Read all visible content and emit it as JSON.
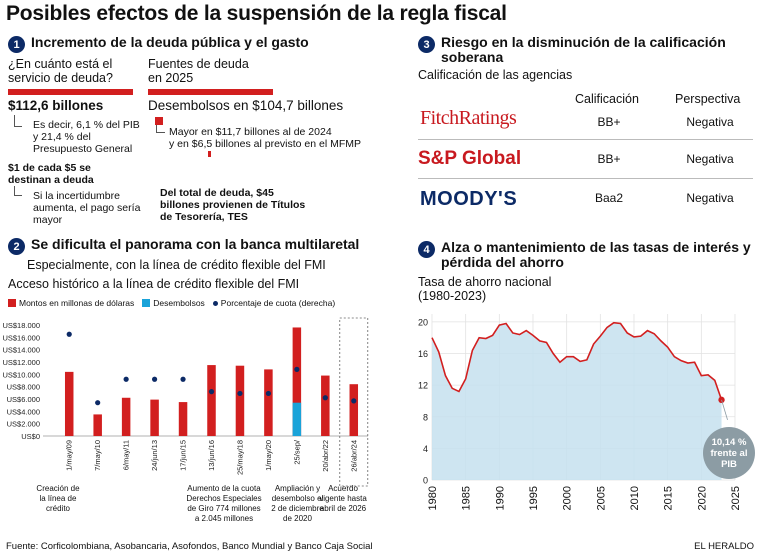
{
  "title": "Posibles efectos de la suspensión de la regla fiscal",
  "s1": {
    "num": "1",
    "title": "Incremento de la deuda pública y el gasto",
    "q_left": "¿En cuánto está el servicio de deuda?",
    "q_right": "Fuentes de deuda en 2025",
    "amount_left": "$112,6 billones",
    "note_left": "Es decir, 6,1 % del PIB y 21,4 % del Presupuesto General",
    "amount_right": "Desembolsos en $104,7 billones",
    "note_right_1": "Mayor en $11,7 billones al de 2024",
    "note_right_2": "y en $6,5 billones al previsto en el MFMP",
    "five_pesos": "$1 de cada $5 se destinan a deuda",
    "uncertainty": "Si la incertidumbre aumenta, el pago sería mayor",
    "tes": "Del total de deuda, $45 billones provienen de Títulos de Tesorería, TES"
  },
  "s2": {
    "num": "2",
    "title": "Se dificulta el panorama con la banca multilaretal",
    "subtitle": "Especialmente, con la línea de crédito flexible del FMI",
    "chart_title": "Acceso histórico a la línea de crédito flexible del FMI",
    "legend": [
      "Montos en millonas de dólaras",
      "Desembolsos",
      "Porcentaje de cuota (derecha)"
    ],
    "annotations": [
      "Creación de la línea de crédito",
      "Aumento de la cuota Derechos Especiales de Giro 774 millones a 2.045 millones",
      "Ampliación y desembolso el 2 de diciembre de 2020",
      "Acuerdo vigente hasta abril de 2026"
    ]
  },
  "s3": {
    "num": "3",
    "title": "Riesgo en la disminución de la calificación soberana",
    "subtitle": "Calificación de las agencias",
    "col_rating": "Calificación",
    "col_outlook": "Perspectiva",
    "rows": [
      {
        "agency": "FitchRatings",
        "rating": "BB+",
        "outlook": "Negativa"
      },
      {
        "agency": "S&P Global",
        "rating": "BB+",
        "outlook": "Negativa"
      },
      {
        "agency": "MOODY'S",
        "rating": "Baa2",
        "outlook": "Negativa"
      }
    ]
  },
  "s4": {
    "num": "4",
    "title": "Alza o mantenimiento de las tasas de interés y pérdida del ahorro",
    "chart_title": "Tasa de ahorro nacional (1980-2023)",
    "callout": "10,14 % frente al PIB"
  },
  "footer": {
    "source": "Fuente: Corficolombiana, Asobancaria, Asofondos, Banco Mundial y Banco Caja Social",
    "brand": "EL HERALDO"
  },
  "colors": {
    "red": "#d21f1f",
    "navy": "#0c2a66",
    "cyan": "#1aa3d9",
    "area": "#c5e1ee"
  },
  "chart_data": [
    {
      "type": "bar",
      "title": "Acceso histórico a la línea de crédito flexible del FMI",
      "categories": [
        "1/may/09",
        "7/may/10",
        "6/may/11",
        "24/jun/13",
        "17/jun/15",
        "13/jun/16",
        "25/may/18",
        "1/may/20",
        "25/sep/",
        "20/abr/22",
        "26/abr/24"
      ],
      "ylim": [
        0,
        18000
      ],
      "y_ticks": [
        "US$0",
        "US$2.000",
        "US$4.000",
        "US$6.000",
        "US$8.000",
        "US$10.000",
        "US$12.000",
        "US$14.000",
        "US$16.000",
        "US$18.000"
      ],
      "series": [
        {
          "name": "Montos en millonas de dólaras",
          "values": [
            10400,
            3500,
            6200,
            5900,
            5500,
            11500,
            11400,
            10800,
            17600,
            9800,
            8400
          ]
        },
        {
          "name": "Desembolsos",
          "values": [
            0,
            0,
            0,
            0,
            0,
            0,
            0,
            0,
            5400,
            0,
            0
          ]
        },
        {
          "name": "Porcentaje de cuota (derecha)",
          "values": [
            16500,
            5400,
            9200,
            9200,
            9200,
            7200,
            6900,
            6900,
            10800,
            6200,
            5700
          ]
        }
      ],
      "highlight_category": "26/abr/24"
    },
    {
      "type": "area",
      "title": "Tasa de ahorro nacional (1980-2023)",
      "x": [
        1980,
        1981,
        1982,
        1983,
        1984,
        1985,
        1986,
        1987,
        1988,
        1989,
        1990,
        1991,
        1992,
        1993,
        1994,
        1995,
        1996,
        1997,
        1998,
        1999,
        2000,
        2001,
        2002,
        2003,
        2004,
        2005,
        2006,
        2007,
        2008,
        2009,
        2010,
        2011,
        2012,
        2013,
        2014,
        2015,
        2016,
        2017,
        2018,
        2019,
        2020,
        2021,
        2022,
        2023
      ],
      "y": [
        18,
        16.2,
        13.2,
        11.6,
        11.2,
        12.8,
        16.4,
        18,
        17.9,
        18.3,
        19.6,
        19.8,
        18.6,
        18.4,
        18.9,
        18.3,
        17.6,
        17.4,
        16,
        14.9,
        15.6,
        15.6,
        15,
        15.2,
        17.2,
        18.2,
        19.3,
        19.9,
        19.8,
        18.6,
        18.1,
        18.2,
        18.9,
        18.5,
        17.6,
        16.8,
        15.6,
        15.1,
        14.8,
        14.9,
        13.2,
        13.3,
        12.6,
        10.14
      ],
      "xlim": [
        1980,
        2025
      ],
      "ylim": [
        0,
        21
      ],
      "y_ticks": [
        0,
        4,
        8,
        12,
        16,
        20
      ],
      "x_ticks": [
        1980,
        1985,
        1990,
        1995,
        2000,
        2005,
        2010,
        2015,
        2020,
        2025
      ],
      "grid": true
    }
  ]
}
